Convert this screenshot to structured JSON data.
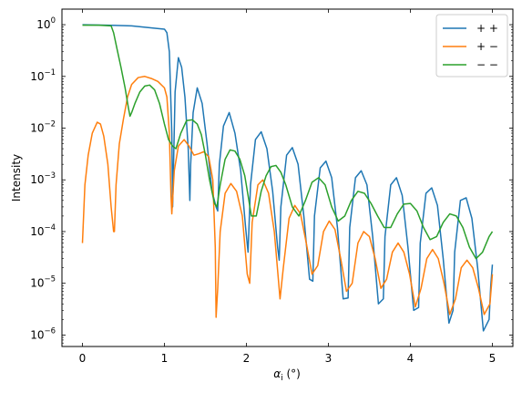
{
  "chart_data": {
    "type": "line",
    "xlabel": "α_i (°)",
    "xlabel_main": "α",
    "xlabel_sub": "i",
    "xlabel_unit": " (°)",
    "ylabel": "Intensity",
    "xscale": "linear",
    "yscale": "log",
    "xlim": [
      -0.25,
      5.25
    ],
    "ylim": [
      6e-07,
      2
    ],
    "grid": false,
    "legend_position": "top-right",
    "x_ticks": [
      0,
      1,
      2,
      3,
      4,
      5
    ],
    "x_tick_labels": [
      "0",
      "1",
      "2",
      "3",
      "4",
      "5"
    ],
    "y_ticks": [
      1e-06,
      1e-05,
      0.0001,
      0.001,
      0.01,
      0.1,
      1
    ],
    "y_tick_labels": [
      {
        "base": "10",
        "exp": "−6"
      },
      {
        "base": "10",
        "exp": "−5"
      },
      {
        "base": "10",
        "exp": "−4"
      },
      {
        "base": "10",
        "exp": "−3"
      },
      {
        "base": "10",
        "exp": "−2"
      },
      {
        "base": "10",
        "exp": "−1"
      },
      {
        "base": "10",
        "exp": "0"
      }
    ],
    "series": [
      {
        "name": "+ +",
        "color": "#1f77b4",
        "x": [
          0,
          0.3,
          0.6,
          0.9,
          1.0,
          1.03,
          1.06,
          1.09,
          1.1,
          1.13,
          1.17,
          1.21,
          1.25,
          1.29,
          1.31,
          1.32,
          1.35,
          1.4,
          1.46,
          1.52,
          1.58,
          1.63,
          1.65,
          1.67,
          1.72,
          1.79,
          1.86,
          1.93,
          1.99,
          2.02,
          2.05,
          2.11,
          2.18,
          2.25,
          2.32,
          2.38,
          2.4,
          2.42,
          2.49,
          2.56,
          2.63,
          2.7,
          2.77,
          2.81,
          2.83,
          2.9,
          2.97,
          3.04,
          3.11,
          3.18,
          3.24,
          3.26,
          3.33,
          3.4,
          3.47,
          3.54,
          3.61,
          3.67,
          3.69,
          3.76,
          3.83,
          3.9,
          3.97,
          4.04,
          4.1,
          4.12,
          4.19,
          4.26,
          4.33,
          4.4,
          4.47,
          4.52,
          4.54,
          4.61,
          4.68,
          4.75,
          4.82,
          4.89,
          4.96,
          4.98,
          5.0
        ],
        "y": [
          1.0,
          0.98,
          0.95,
          0.85,
          0.82,
          0.7,
          0.3,
          0.008,
          0.0003,
          0.05,
          0.23,
          0.15,
          0.04,
          0.004,
          0.0004,
          0.002,
          0.02,
          0.06,
          0.03,
          0.005,
          0.0006,
          0.0003,
          0.00025,
          0.002,
          0.011,
          0.02,
          0.008,
          0.0015,
          0.00012,
          4e-05,
          0.0008,
          0.006,
          0.0085,
          0.004,
          0.0006,
          5e-05,
          2.8e-05,
          0.0003,
          0.003,
          0.0042,
          0.002,
          0.0002,
          1.2e-05,
          1.1e-05,
          0.0002,
          0.0017,
          0.0023,
          0.0011,
          0.00012,
          5e-06,
          5.2e-06,
          0.00012,
          0.0011,
          0.0015,
          0.0008,
          8e-05,
          4e-06,
          5e-06,
          8e-05,
          0.0008,
          0.0011,
          0.0005,
          5e-05,
          3e-06,
          3.4e-06,
          6e-05,
          0.00055,
          0.0007,
          0.00032,
          3e-05,
          1.7e-06,
          3e-06,
          4e-05,
          0.0004,
          0.00045,
          0.00018,
          2e-05,
          1.2e-06,
          2e-06,
          9e-06,
          2.3e-05
        ]
      },
      {
        "name": "+ −",
        "color": "#ff7f0e",
        "x": [
          0,
          0.03,
          0.07,
          0.12,
          0.18,
          0.22,
          0.26,
          0.31,
          0.35,
          0.38,
          0.39,
          0.41,
          0.45,
          0.5,
          0.55,
          0.6,
          0.68,
          0.76,
          0.85,
          0.92,
          1.0,
          1.03,
          1.06,
          1.08,
          1.09,
          1.12,
          1.17,
          1.24,
          1.3,
          1.36,
          1.42,
          1.48,
          1.54,
          1.59,
          1.62,
          1.63,
          1.65,
          1.68,
          1.74,
          1.81,
          1.88,
          1.95,
          2.01,
          2.04,
          2.07,
          2.14,
          2.2,
          2.27,
          2.34,
          2.41,
          2.45,
          2.52,
          2.59,
          2.66,
          2.73,
          2.8,
          2.87,
          2.94,
          3.01,
          3.08,
          3.15,
          3.22,
          3.29,
          3.36,
          3.43,
          3.5,
          3.57,
          3.64,
          3.71,
          3.78,
          3.85,
          3.92,
          3.99,
          4.06,
          4.13,
          4.2,
          4.27,
          4.34,
          4.41,
          4.48,
          4.55,
          4.62,
          4.69,
          4.76,
          4.83,
          4.9,
          4.97,
          5.0
        ],
        "y": [
          6e-05,
          0.0008,
          0.003,
          0.008,
          0.013,
          0.012,
          0.007,
          0.002,
          0.0003,
          0.0001,
          0.0001,
          0.0008,
          0.005,
          0.015,
          0.04,
          0.07,
          0.095,
          0.1,
          0.09,
          0.08,
          0.06,
          0.04,
          0.008,
          0.0005,
          0.00022,
          0.0015,
          0.0045,
          0.006,
          0.0045,
          0.003,
          0.0032,
          0.0035,
          0.0028,
          0.001,
          5e-05,
          2.2e-06,
          8e-06,
          0.0001,
          0.00055,
          0.00085,
          0.0006,
          0.0002,
          1.5e-05,
          1e-05,
          0.00015,
          0.0008,
          0.001,
          0.00055,
          0.0001,
          5e-06,
          2e-05,
          0.00018,
          0.00032,
          0.00022,
          6e-05,
          1.5e-05,
          2.2e-05,
          0.0001,
          0.00016,
          0.00011,
          3e-05,
          7e-06,
          1e-05,
          6e-05,
          0.0001,
          8e-05,
          3e-05,
          8e-06,
          1.2e-05,
          4e-05,
          6e-05,
          4e-05,
          1.5e-05,
          3.5e-06,
          8e-06,
          3e-05,
          4.5e-05,
          3e-05,
          1e-05,
          2.5e-06,
          5e-06,
          2e-05,
          2.8e-05,
          2e-05,
          8e-06,
          2.5e-06,
          4e-06,
          1.5e-05
        ]
      },
      {
        "name": "− −",
        "color": "#2ca02c",
        "x": [
          0,
          0.2,
          0.35,
          0.38,
          0.42,
          0.47,
          0.52,
          0.56,
          0.58,
          0.6,
          0.64,
          0.7,
          0.76,
          0.82,
          0.88,
          0.94,
          1.0,
          1.05,
          1.1,
          1.14,
          1.2,
          1.27,
          1.34,
          1.4,
          1.45,
          1.5,
          1.55,
          1.61,
          1.64,
          1.68,
          1.74,
          1.8,
          1.86,
          1.92,
          1.98,
          2.02,
          2.06,
          2.12,
          2.18,
          2.24,
          2.3,
          2.36,
          2.42,
          2.48,
          2.56,
          2.64,
          2.72,
          2.8,
          2.88,
          2.96,
          3.04,
          3.12,
          3.2,
          3.28,
          3.36,
          3.44,
          3.52,
          3.6,
          3.68,
          3.76,
          3.84,
          3.92,
          4.0,
          4.08,
          4.16,
          4.24,
          4.32,
          4.4,
          4.48,
          4.56,
          4.64,
          4.72,
          4.8,
          4.88,
          4.96,
          5.0
        ],
        "y": [
          0.98,
          0.98,
          0.95,
          0.7,
          0.35,
          0.15,
          0.06,
          0.025,
          0.017,
          0.02,
          0.03,
          0.05,
          0.065,
          0.068,
          0.055,
          0.03,
          0.012,
          0.006,
          0.0045,
          0.004,
          0.008,
          0.014,
          0.0145,
          0.012,
          0.0075,
          0.003,
          0.001,
          0.00035,
          0.0003,
          0.0008,
          0.0025,
          0.0038,
          0.0036,
          0.0025,
          0.0012,
          0.0005,
          0.0002,
          0.0002,
          0.0006,
          0.0012,
          0.0018,
          0.0019,
          0.0014,
          0.0008,
          0.0003,
          0.0002,
          0.0004,
          0.0009,
          0.0011,
          0.0008,
          0.0003,
          0.00016,
          0.0002,
          0.0004,
          0.0006,
          0.00055,
          0.00035,
          0.0002,
          0.00012,
          0.00012,
          0.00022,
          0.00034,
          0.00035,
          0.00025,
          0.00012,
          7e-05,
          8e-05,
          0.00015,
          0.00022,
          0.0002,
          0.00012,
          5e-05,
          3e-05,
          4e-05,
          8e-05,
          0.0001
        ]
      }
    ]
  }
}
